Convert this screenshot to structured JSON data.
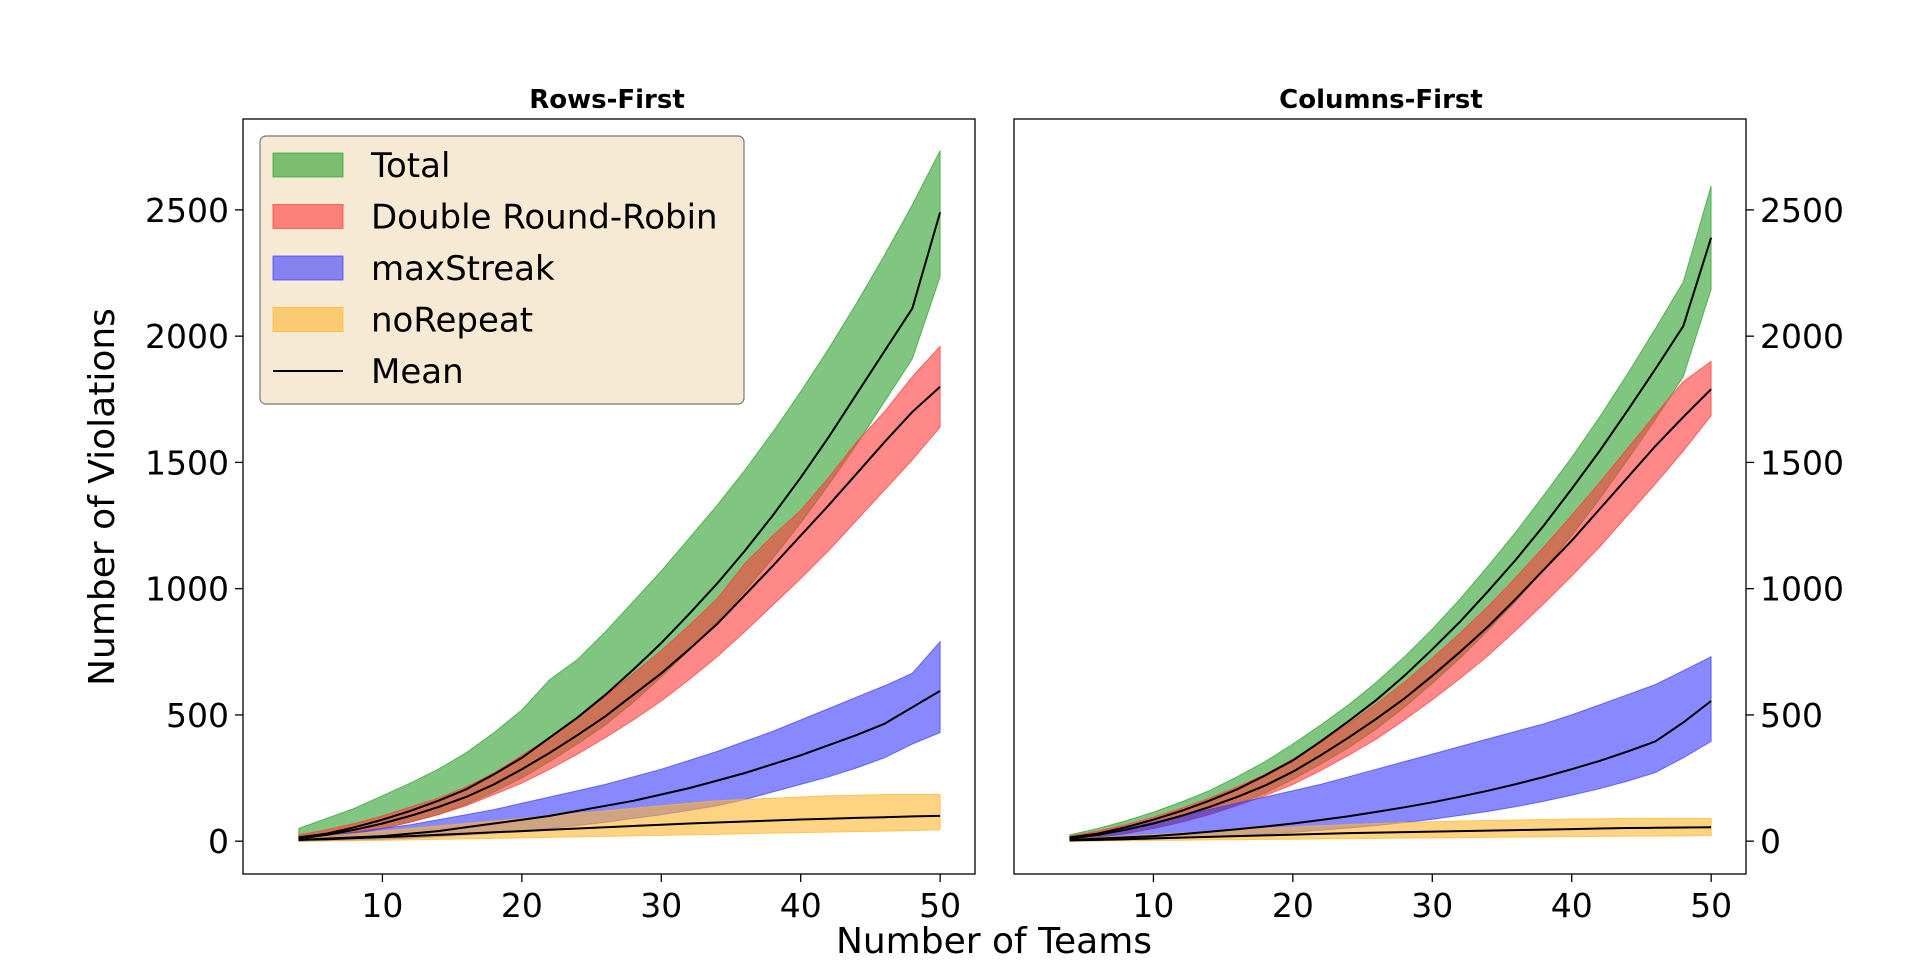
{
  "figure": {
    "xlabel": "Number of Teams",
    "ylabel": "Number of Violations"
  },
  "legend": {
    "placement": "upper-left of left panel",
    "items": [
      {
        "label": "Total",
        "color": "#2ca02c"
      },
      {
        "label": "Double Round-Robin",
        "color": "#ff3b3b"
      },
      {
        "label": "maxStreak",
        "color": "#3b3bff"
      },
      {
        "label": "noRepeat",
        "color": "#ffb52e"
      },
      {
        "label": "Mean",
        "color": "#000000"
      }
    ]
  },
  "chart_data": [
    {
      "type": "area",
      "title": "Rows-First",
      "xlim": [
        0,
        52.5
      ],
      "ylim": [
        -130,
        2860
      ],
      "xticks": [
        10,
        20,
        30,
        40,
        50
      ],
      "yticks": [
        0,
        500,
        1000,
        1500,
        2000,
        2500
      ],
      "grid": false,
      "yaxis_side": "left",
      "x": [
        4,
        6,
        8,
        10,
        12,
        14,
        16,
        18,
        20,
        22,
        24,
        26,
        28,
        30,
        32,
        34,
        36,
        38,
        40,
        42,
        44,
        46,
        48,
        50
      ],
      "series": [
        {
          "name": "Total",
          "color": "#2ca02c",
          "mean": [
            15,
            30,
            55,
            85,
            120,
            160,
            205,
            265,
            330,
            410,
            490,
            580,
            680,
            785,
            900,
            1020,
            1150,
            1290,
            1440,
            1600,
            1770,
            1940,
            2110,
            2490
          ],
          "lower": [
            5,
            15,
            30,
            50,
            75,
            105,
            145,
            195,
            250,
            315,
            385,
            460,
            550,
            650,
            755,
            870,
            990,
            1120,
            1260,
            1410,
            1570,
            1740,
            1910,
            2235
          ],
          "upper": [
            50,
            90,
            130,
            180,
            230,
            285,
            350,
            430,
            520,
            640,
            720,
            830,
            950,
            1070,
            1200,
            1330,
            1470,
            1620,
            1780,
            1950,
            2130,
            2320,
            2520,
            2735
          ]
        },
        {
          "name": "Double Round-Robin",
          "color": "#ff3b3b",
          "mean": [
            10,
            25,
            45,
            70,
            100,
            135,
            175,
            225,
            285,
            350,
            420,
            495,
            580,
            665,
            760,
            860,
            975,
            1090,
            1210,
            1330,
            1455,
            1580,
            1700,
            1800
          ],
          "lower": [
            5,
            15,
            30,
            50,
            75,
            105,
            140,
            185,
            230,
            285,
            345,
            410,
            480,
            555,
            640,
            730,
            830,
            935,
            1040,
            1150,
            1270,
            1390,
            1510,
            1640
          ],
          "upper": [
            25,
            45,
            70,
            100,
            135,
            170,
            215,
            270,
            340,
            410,
            490,
            575,
            665,
            755,
            855,
            960,
            1100,
            1210,
            1310,
            1440,
            1580,
            1700,
            1840,
            1960
          ]
        },
        {
          "name": "maxStreak",
          "color": "#3b3bff",
          "mean": [
            5,
            10,
            15,
            20,
            30,
            40,
            55,
            70,
            85,
            100,
            120,
            140,
            160,
            185,
            210,
            240,
            270,
            305,
            340,
            380,
            420,
            465,
            530,
            595
          ],
          "lower": [
            0,
            2,
            5,
            8,
            12,
            18,
            25,
            32,
            40,
            50,
            62,
            75,
            90,
            105,
            122,
            140,
            165,
            195,
            225,
            255,
            290,
            330,
            385,
            430
          ],
          "upper": [
            15,
            25,
            35,
            50,
            65,
            85,
            105,
            125,
            150,
            175,
            200,
            225,
            255,
            285,
            320,
            355,
            395,
            435,
            480,
            525,
            570,
            615,
            665,
            790
          ]
        },
        {
          "name": "noRepeat",
          "color": "#ffb52e",
          "mean": [
            5,
            8,
            12,
            16,
            20,
            25,
            30,
            35,
            40,
            45,
            50,
            55,
            60,
            65,
            70,
            74,
            78,
            82,
            86,
            89,
            92,
            95,
            98,
            100
          ],
          "lower": [
            0,
            1,
            2,
            3,
            5,
            7,
            9,
            11,
            13,
            15,
            17,
            19,
            21,
            23,
            25,
            27,
            30,
            32,
            34,
            36,
            38,
            40,
            42,
            45
          ],
          "upper": [
            10,
            20,
            30,
            40,
            50,
            60,
            70,
            80,
            90,
            100,
            110,
            120,
            130,
            140,
            150,
            160,
            165,
            170,
            175,
            180,
            182,
            185,
            185,
            185
          ]
        }
      ]
    },
    {
      "type": "area",
      "title": "Columns-First",
      "xlim": [
        0,
        52.5
      ],
      "ylim": [
        -130,
        2860
      ],
      "xticks": [
        10,
        20,
        30,
        40,
        50
      ],
      "yticks": [
        0,
        500,
        1000,
        1500,
        2000,
        2500
      ],
      "grid": false,
      "yaxis_side": "right",
      "x": [
        4,
        6,
        8,
        10,
        12,
        14,
        16,
        18,
        20,
        22,
        24,
        26,
        28,
        30,
        32,
        34,
        36,
        38,
        40,
        42,
        44,
        46,
        48,
        50
      ],
      "series": [
        {
          "name": "Total",
          "color": "#2ca02c",
          "mean": [
            15,
            30,
            55,
            85,
            120,
            160,
            205,
            260,
            320,
            395,
            475,
            560,
            655,
            760,
            870,
            990,
            1115,
            1250,
            1395,
            1545,
            1705,
            1870,
            2040,
            2390
          ],
          "lower": [
            5,
            15,
            30,
            50,
            75,
            105,
            145,
            190,
            245,
            305,
            370,
            445,
            530,
            625,
            725,
            835,
            950,
            1075,
            1210,
            1355,
            1510,
            1670,
            1840,
            2185
          ],
          "upper": [
            25,
            50,
            80,
            115,
            155,
            200,
            255,
            315,
            385,
            460,
            540,
            630,
            730,
            840,
            960,
            1090,
            1225,
            1370,
            1520,
            1680,
            1850,
            2030,
            2215,
            2595
          ]
        },
        {
          "name": "Double Round-Robin",
          "color": "#ff3b3b",
          "mean": [
            10,
            25,
            45,
            70,
            100,
            135,
            175,
            220,
            275,
            340,
            410,
            485,
            565,
            655,
            750,
            850,
            960,
            1075,
            1190,
            1315,
            1440,
            1565,
            1680,
            1790
          ],
          "lower": [
            5,
            15,
            30,
            50,
            75,
            105,
            140,
            180,
            225,
            280,
            340,
            405,
            480,
            560,
            645,
            735,
            835,
            940,
            1050,
            1165,
            1290,
            1415,
            1545,
            1685
          ],
          "upper": [
            20,
            40,
            65,
            95,
            130,
            170,
            215,
            265,
            325,
            390,
            465,
            545,
            630,
            725,
            825,
            930,
            1045,
            1165,
            1290,
            1420,
            1555,
            1690,
            1820,
            1900
          ]
        },
        {
          "name": "maxStreak",
          "color": "#3b3bff",
          "mean": [
            5,
            10,
            15,
            20,
            28,
            37,
            47,
            58,
            70,
            84,
            99,
            116,
            134,
            154,
            176,
            200,
            226,
            254,
            285,
            318,
            355,
            395,
            470,
            555
          ],
          "lower": [
            0,
            2,
            5,
            8,
            12,
            17,
            22,
            28,
            35,
            43,
            52,
            62,
            74,
            87,
            102,
            118,
            137,
            158,
            182,
            208,
            238,
            272,
            330,
            395
          ],
          "upper": [
            15,
            30,
            50,
            75,
            100,
            125,
            150,
            175,
            200,
            225,
            255,
            285,
            315,
            345,
            375,
            405,
            435,
            465,
            500,
            540,
            580,
            620,
            675,
            730
          ]
        },
        {
          "name": "noRepeat",
          "color": "#ffb52e",
          "mean": [
            3,
            5,
            8,
            11,
            14,
            17,
            20,
            23,
            26,
            29,
            32,
            34,
            36,
            38,
            40,
            42,
            44,
            46,
            48,
            50,
            52,
            53,
            54,
            55
          ],
          "lower": [
            0,
            1,
            2,
            3,
            4,
            5,
            6,
            7,
            8,
            9,
            10,
            11,
            12,
            13,
            14,
            15,
            16,
            17,
            18,
            19,
            20,
            20,
            21,
            22
          ],
          "upper": [
            8,
            14,
            20,
            26,
            32,
            38,
            44,
            50,
            56,
            61,
            66,
            70,
            74,
            77,
            80,
            82,
            84,
            86,
            88,
            89,
            90,
            90,
            90,
            90
          ]
        }
      ]
    }
  ]
}
